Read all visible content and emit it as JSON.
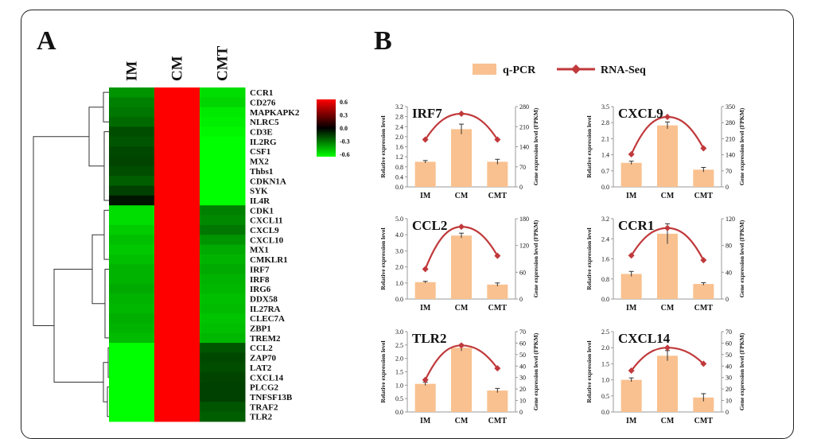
{
  "panel_a": {
    "label": "A",
    "columns": [
      "IM",
      "CM",
      "CMT"
    ],
    "colorbar": {
      "ticks": [
        "0.6",
        "0.3",
        "0.0",
        "-0.3",
        "-0.6"
      ],
      "colors": [
        "#ff0000",
        "#000000",
        "#00ff00"
      ]
    },
    "rows": [
      "CCR1",
      "CD276",
      "MAPKAPK2",
      "NLRC5",
      "CD3E",
      "IL2RG",
      "CSF1",
      "MX2",
      "Thbs1",
      "CDKN1A",
      "SYK",
      "IL4R",
      "CDK1",
      "CXCL11",
      "CXCL9",
      "CXCL10",
      "MX1",
      "CMKLR1",
      "IRF7",
      "IRF8",
      "IRG6",
      "DDX58",
      "IL27RA",
      "CLEC7A",
      "ZBP1",
      "TREM2",
      "CCL2",
      "ZAP70",
      "LAT2",
      "CXCL14",
      "PLCG2",
      "TNFSF13B",
      "TRAF2",
      "TLR2"
    ]
  },
  "chart_data": {
    "type": "heatmap",
    "columns": [
      "IM",
      "CM",
      "CMT"
    ],
    "rows": [
      "CCR1",
      "CD276",
      "MAPKAPK2",
      "NLRC5",
      "CD3E",
      "IL2RG",
      "CSF1",
      "MX2",
      "Thbs1",
      "CDKN1A",
      "SYK",
      "IL4R",
      "CDK1",
      "CXCL11",
      "CXCL9",
      "CXCL10",
      "MX1",
      "CMKLR1",
      "IRF7",
      "IRF8",
      "IRG6",
      "DDX58",
      "IL27RA",
      "CLEC7A",
      "ZBP1",
      "TREM2",
      "CCL2",
      "ZAP70",
      "LAT2",
      "CXCL14",
      "PLCG2",
      "TNFSF13B",
      "TRAF2",
      "TLR2"
    ],
    "values": [
      [
        -0.35,
        0.6,
        -0.52
      ],
      [
        -0.3,
        0.6,
        -0.5
      ],
      [
        -0.28,
        0.6,
        -0.55
      ],
      [
        -0.25,
        0.6,
        -0.56
      ],
      [
        -0.18,
        0.6,
        -0.58
      ],
      [
        -0.2,
        0.6,
        -0.6
      ],
      [
        -0.17,
        0.6,
        -0.6
      ],
      [
        -0.16,
        0.6,
        -0.6
      ],
      [
        -0.18,
        0.6,
        -0.6
      ],
      [
        -0.22,
        0.6,
        -0.6
      ],
      [
        -0.15,
        0.6,
        -0.6
      ],
      [
        -0.05,
        0.6,
        -0.6
      ],
      [
        -0.52,
        0.6,
        -0.3
      ],
      [
        -0.52,
        0.6,
        -0.32
      ],
      [
        -0.48,
        0.6,
        -0.28
      ],
      [
        -0.45,
        0.6,
        -0.35
      ],
      [
        -0.47,
        0.6,
        -0.4
      ],
      [
        -0.45,
        0.6,
        -0.42
      ],
      [
        -0.42,
        0.6,
        -0.4
      ],
      [
        -0.42,
        0.6,
        -0.42
      ],
      [
        -0.4,
        0.6,
        -0.43
      ],
      [
        -0.42,
        0.6,
        -0.45
      ],
      [
        -0.43,
        0.6,
        -0.44
      ],
      [
        -0.41,
        0.6,
        -0.46
      ],
      [
        -0.42,
        0.6,
        -0.45
      ],
      [
        -0.44,
        0.6,
        -0.43
      ],
      [
        -0.6,
        0.6,
        -0.2
      ],
      [
        -0.6,
        0.6,
        -0.17
      ],
      [
        -0.6,
        0.6,
        -0.18
      ],
      [
        -0.6,
        0.6,
        -0.16
      ],
      [
        -0.6,
        0.6,
        -0.15
      ],
      [
        -0.6,
        0.6,
        -0.15
      ],
      [
        -0.6,
        0.6,
        -0.2
      ],
      [
        -0.6,
        0.6,
        -0.22
      ]
    ],
    "colorbar_range": [
      -0.6,
      0.6
    ]
  },
  "panel_b": {
    "label": "B",
    "legend": [
      {
        "name": "q-PCR",
        "color": "#f9c18f"
      },
      {
        "name": "RNA-Seq",
        "color": "#c0393b"
      }
    ],
    "left_axis_label": "Relative expression level",
    "right_axis_label": "Gene expression level (FPKM)",
    "categories": [
      "IM",
      "CM",
      "CMT"
    ],
    "charts": [
      {
        "title": "IRF7",
        "left_ticks": [
          "0.0",
          "0.4",
          "0.8",
          "1.2",
          "1.6",
          "2.0",
          "2.4",
          "2.8",
          "3.2"
        ],
        "right_ticks": [
          "0",
          "70",
          "140",
          "210",
          "280"
        ],
        "ylim": [
          0,
          3.2
        ],
        "y2lim": [
          0,
          280
        ],
        "qpcr": [
          1.0,
          2.3,
          1.0
        ],
        "err": [
          0.05,
          0.2,
          0.1
        ],
        "rnaseq": [
          165,
          255,
          165
        ]
      },
      {
        "title": "CXCL9",
        "left_ticks": [
          "0.0",
          "0.7",
          "1.4",
          "2.1",
          "2.8",
          "3.5"
        ],
        "right_ticks": [
          "0",
          "70",
          "140",
          "210",
          "280",
          "350"
        ],
        "ylim": [
          0,
          3.5
        ],
        "y2lim": [
          0,
          350
        ],
        "qpcr": [
          1.05,
          2.68,
          0.75
        ],
        "err": [
          0.07,
          0.15,
          0.1
        ],
        "rnaseq": [
          142,
          305,
          168
        ]
      },
      {
        "title": "CCL2",
        "left_ticks": [
          "0.0",
          "1.0",
          "2.0",
          "3.0",
          "4.0",
          "5.0"
        ],
        "right_ticks": [
          "0",
          "60",
          "120",
          "180"
        ],
        "ylim": [
          0,
          5.0
        ],
        "y2lim": [
          0,
          180
        ],
        "qpcr": [
          1.05,
          3.95,
          0.9
        ],
        "err": [
          0.05,
          0.15,
          0.1
        ],
        "rnaseq": [
          67,
          162,
          97
        ]
      },
      {
        "title": "CCR1",
        "left_ticks": [
          "0.0",
          "0.8",
          "1.6",
          "2.4",
          "3.2"
        ],
        "right_ticks": [
          "0",
          "40",
          "80",
          "120"
        ],
        "ylim": [
          0,
          3.2
        ],
        "y2lim": [
          0,
          120
        ],
        "qpcr": [
          1.0,
          2.6,
          0.6
        ],
        "err": [
          0.1,
          0.4,
          0.05
        ],
        "rnaseq": [
          65,
          106,
          58
        ]
      },
      {
        "title": "TLR2",
        "left_ticks": [
          "0.0",
          "0.5",
          "1.0",
          "1.5",
          "2.0",
          "2.5",
          "3.0"
        ],
        "right_ticks": [
          "0",
          "10",
          "20",
          "30",
          "40",
          "50",
          "60",
          "70"
        ],
        "ylim": [
          0,
          3.0
        ],
        "y2lim": [
          0,
          70
        ],
        "qpcr": [
          1.05,
          2.4,
          0.8
        ],
        "err": [
          0.06,
          0.12,
          0.08
        ],
        "rnaseq": [
          28,
          58,
          38
        ]
      },
      {
        "title": "CXCL14",
        "left_ticks": [
          "0.0",
          "0.5",
          "1.0",
          "1.5",
          "2.0",
          "2.5"
        ],
        "right_ticks": [
          "0",
          "10",
          "20",
          "30",
          "40",
          "50",
          "60",
          "70"
        ],
        "ylim": [
          0,
          2.5
        ],
        "y2lim": [
          0,
          70
        ],
        "qpcr": [
          1.0,
          1.75,
          0.45
        ],
        "err": [
          0.06,
          0.16,
          0.12
        ],
        "rnaseq": [
          36,
          56,
          42
        ]
      }
    ]
  }
}
